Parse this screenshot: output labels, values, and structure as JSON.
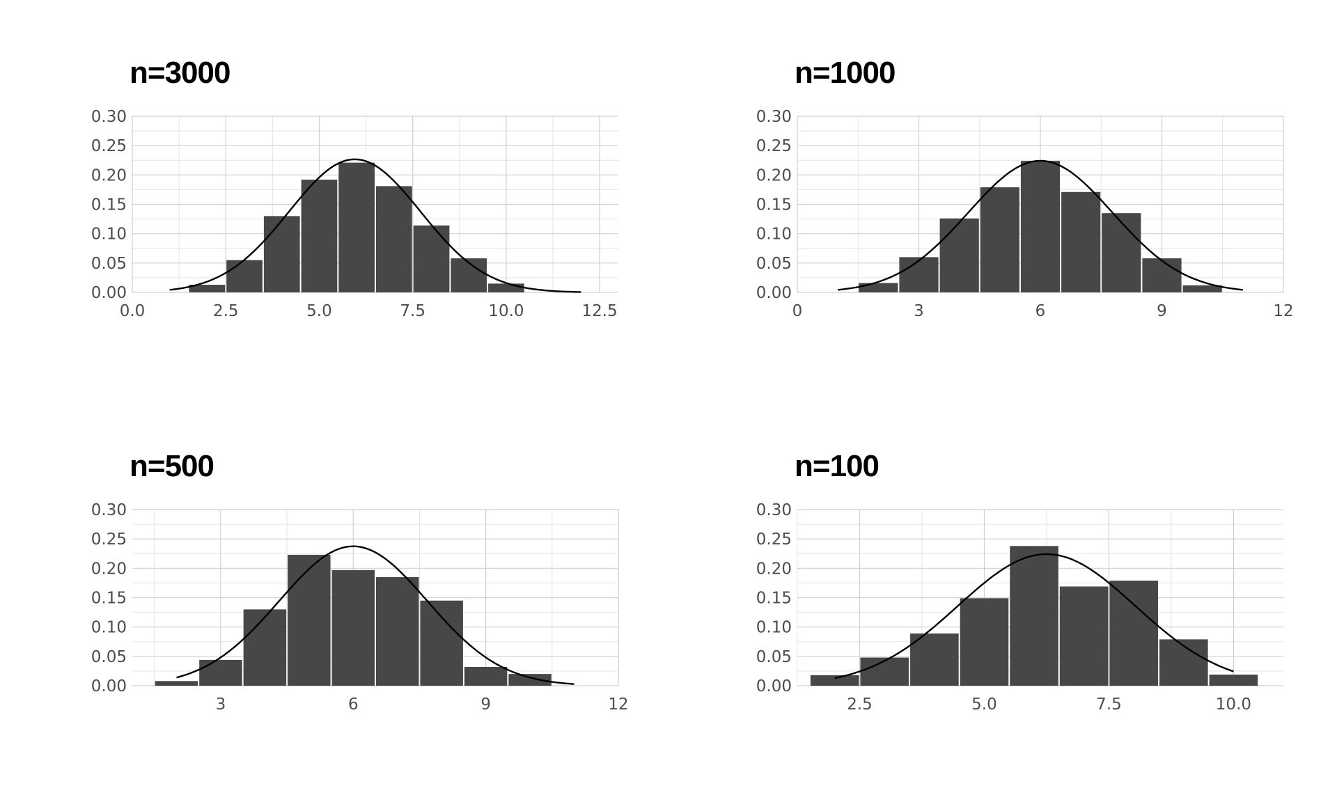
{
  "chart_data": [
    {
      "type": "bar",
      "title": "n=3000",
      "xlabel": "",
      "ylabel": "",
      "xlim": [
        0,
        13
      ],
      "ylim": [
        0,
        0.3
      ],
      "x_ticks": [
        0,
        2.5,
        5,
        7.5,
        10,
        12.5
      ],
      "x_tick_labels": [
        "0.0",
        "2.5",
        "5.0",
        "7.5",
        "10.0",
        "12.5"
      ],
      "y_ticks": [
        0,
        0.05,
        0.1,
        0.15,
        0.2,
        0.25,
        0.3
      ],
      "y_tick_labels": [
        "0.00",
        "0.05",
        "0.10",
        "0.15",
        "0.20",
        "0.25",
        "0.30"
      ],
      "bins": [
        {
          "x0": 1.5,
          "x1": 2.5,
          "value": 0.013
        },
        {
          "x0": 2.5,
          "x1": 3.5,
          "value": 0.055
        },
        {
          "x0": 3.5,
          "x1": 4.5,
          "value": 0.13
        },
        {
          "x0": 4.5,
          "x1": 5.5,
          "value": 0.192
        },
        {
          "x0": 5.5,
          "x1": 6.5,
          "value": 0.221
        },
        {
          "x0": 6.5,
          "x1": 7.5,
          "value": 0.181
        },
        {
          "x0": 7.5,
          "x1": 8.5,
          "value": 0.114
        },
        {
          "x0": 8.5,
          "x1": 9.5,
          "value": 0.058
        },
        {
          "x0": 9.5,
          "x1": 10.5,
          "value": 0.015
        }
      ],
      "curve": {
        "mean": 5.95,
        "sd": 1.76,
        "x_range": [
          1,
          12
        ]
      },
      "bar_color": "#474747",
      "curve_color": "#000000"
    },
    {
      "type": "bar",
      "title": "n=1000",
      "xlabel": "",
      "ylabel": "",
      "xlim": [
        0,
        12
      ],
      "ylim": [
        0,
        0.3
      ],
      "x_ticks": [
        0,
        3,
        6,
        9,
        12
      ],
      "x_tick_labels": [
        "0",
        "3",
        "6",
        "9",
        "12"
      ],
      "y_ticks": [
        0,
        0.05,
        0.1,
        0.15,
        0.2,
        0.25,
        0.3
      ],
      "y_tick_labels": [
        "0.00",
        "0.05",
        "0.10",
        "0.15",
        "0.20",
        "0.25",
        "0.30"
      ],
      "bins": [
        {
          "x0": 1.5,
          "x1": 2.5,
          "value": 0.016
        },
        {
          "x0": 2.5,
          "x1": 3.5,
          "value": 0.06
        },
        {
          "x0": 3.5,
          "x1": 4.5,
          "value": 0.126
        },
        {
          "x0": 4.5,
          "x1": 5.5,
          "value": 0.179
        },
        {
          "x0": 5.5,
          "x1": 6.5,
          "value": 0.224
        },
        {
          "x0": 6.5,
          "x1": 7.5,
          "value": 0.171
        },
        {
          "x0": 7.5,
          "x1": 8.5,
          "value": 0.135
        },
        {
          "x0": 8.5,
          "x1": 9.5,
          "value": 0.058
        },
        {
          "x0": 9.5,
          "x1": 10.5,
          "value": 0.012
        }
      ],
      "curve": {
        "mean": 6.0,
        "sd": 1.78,
        "x_range": [
          1,
          11
        ]
      },
      "bar_color": "#474747",
      "curve_color": "#000000"
    },
    {
      "type": "bar",
      "title": "n=500",
      "xlabel": "",
      "ylabel": "",
      "xlim": [
        1,
        12
      ],
      "ylim": [
        0,
        0.3
      ],
      "x_ticks": [
        3,
        6,
        9,
        12
      ],
      "x_tick_labels": [
        "3",
        "6",
        "9",
        "12"
      ],
      "y_ticks": [
        0,
        0.05,
        0.1,
        0.15,
        0.2,
        0.25,
        0.3
      ],
      "y_tick_labels": [
        "0.00",
        "0.05",
        "0.10",
        "0.15",
        "0.20",
        "0.25",
        "0.30"
      ],
      "bins": [
        {
          "x0": 1.5,
          "x1": 2.5,
          "value": 0.008
        },
        {
          "x0": 2.5,
          "x1": 3.5,
          "value": 0.044
        },
        {
          "x0": 3.5,
          "x1": 4.5,
          "value": 0.13
        },
        {
          "x0": 4.5,
          "x1": 5.5,
          "value": 0.223
        },
        {
          "x0": 5.5,
          "x1": 6.5,
          "value": 0.197
        },
        {
          "x0": 6.5,
          "x1": 7.5,
          "value": 0.185
        },
        {
          "x0": 7.5,
          "x1": 8.5,
          "value": 0.145
        },
        {
          "x0": 8.5,
          "x1": 9.5,
          "value": 0.032
        },
        {
          "x0": 9.5,
          "x1": 10.5,
          "value": 0.02
        }
      ],
      "curve": {
        "mean": 6.0,
        "sd": 1.68,
        "x_range": [
          2,
          11
        ]
      },
      "bar_color": "#474747",
      "curve_color": "#000000"
    },
    {
      "type": "bar",
      "title": "n=100",
      "xlabel": "",
      "ylabel": "",
      "xlim": [
        1.25,
        11
      ],
      "ylim": [
        0,
        0.3
      ],
      "x_ticks": [
        2.5,
        5,
        7.5,
        10
      ],
      "x_tick_labels": [
        "2.5",
        "5.0",
        "7.5",
        "10.0"
      ],
      "y_ticks": [
        0,
        0.05,
        0.1,
        0.15,
        0.2,
        0.25,
        0.3
      ],
      "y_tick_labels": [
        "0.00",
        "0.05",
        "0.10",
        "0.15",
        "0.20",
        "0.25",
        "0.30"
      ],
      "bins": [
        {
          "x0": 1.5,
          "x1": 2.5,
          "value": 0.018
        },
        {
          "x0": 2.5,
          "x1": 3.5,
          "value": 0.048
        },
        {
          "x0": 3.5,
          "x1": 4.5,
          "value": 0.089
        },
        {
          "x0": 4.5,
          "x1": 5.5,
          "value": 0.149
        },
        {
          "x0": 5.5,
          "x1": 6.5,
          "value": 0.238
        },
        {
          "x0": 6.5,
          "x1": 7.5,
          "value": 0.169
        },
        {
          "x0": 7.5,
          "x1": 8.5,
          "value": 0.179
        },
        {
          "x0": 8.5,
          "x1": 9.5,
          "value": 0.079
        },
        {
          "x0": 9.5,
          "x1": 10.5,
          "value": 0.019
        }
      ],
      "curve": {
        "mean": 6.25,
        "sd": 1.78,
        "x_range": [
          2,
          10
        ]
      },
      "bar_color": "#474747",
      "curve_color": "#000000"
    }
  ]
}
